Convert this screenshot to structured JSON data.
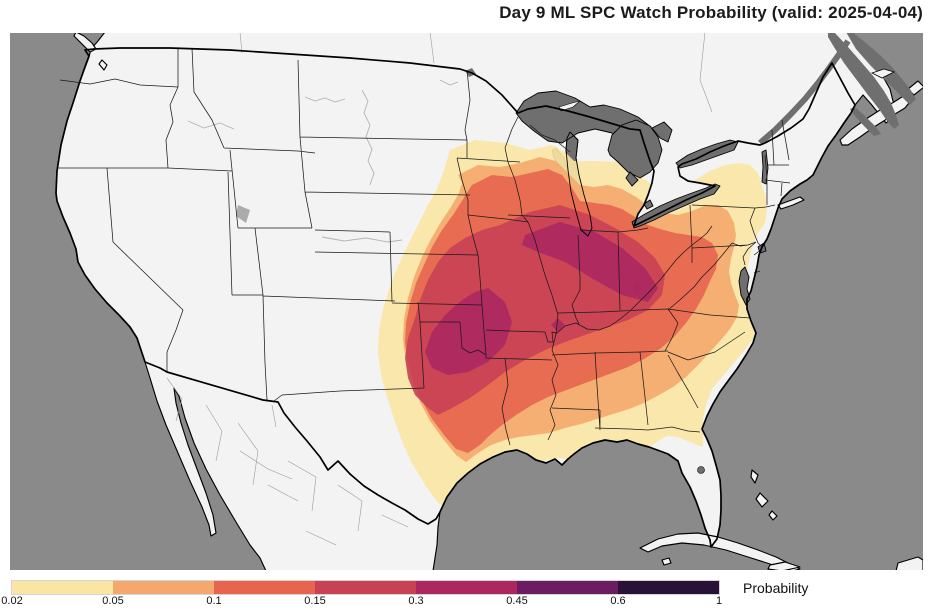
{
  "title": "Day 9 ML SPC Watch Probability (valid: 2025-04-04)",
  "colorbar": {
    "label": "Probability",
    "tick_labels": [
      "0.02",
      "0.05",
      "0.1",
      "0.15",
      "0.3",
      "0.45",
      "0.6",
      "1"
    ],
    "segment_colors": [
      "#FBE5A3",
      "#F4A86D",
      "#E7654E",
      "#C84155",
      "#AC2760",
      "#6B1C62",
      "#2A1138"
    ]
  },
  "map_colors": {
    "ocean": "#8A8A8A",
    "land": "#F3F3F3",
    "lake": "#6F6F6F",
    "border": "#000000",
    "state_line": "#1A1A1A",
    "foreign_line": "#9A9A9A",
    "river": "#B3B3B3"
  },
  "chart_data": {
    "type": "heatmap",
    "subtype": "filled-contour-probability-map",
    "title": "Day 9 ML SPC Watch Probability (valid: 2025-04-04)",
    "region": "Contiguous United States",
    "variable": "SPC watch probability",
    "levels": [
      0.02,
      0.05,
      0.1,
      0.15,
      0.3,
      0.45,
      0.6,
      1
    ],
    "level_colors": [
      "#FBE5A3",
      "#F4A86D",
      "#E7654E",
      "#C84155",
      "#AC2760",
      "#6B1C62",
      "#2A1138"
    ],
    "colorbar_label": "Probability",
    "legend_position": "bottom",
    "max_contour_reached": 0.3,
    "max_probability_area": "Missouri, Illinois, Indiana, Arkansas, western Kentucky",
    "coverage_extent": "Great Plains to Appalachians, Gulf Coast to upper Midwest"
  }
}
